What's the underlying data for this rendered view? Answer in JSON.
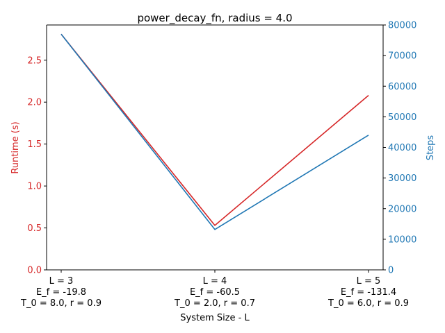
{
  "chart_data": {
    "type": "line",
    "title": "power_decay_fn, radius = 4.0",
    "xlabel": "System Size - L",
    "ylabel_left": "Runtime (s)",
    "ylabel_right": "Steps",
    "categories": [
      [
        "L = 3",
        "E_f = -19.8",
        "T_0 = 8.0, r = 0.9"
      ],
      [
        "L = 4",
        "E_f = -60.5",
        "T_0 = 2.0, r = 0.7"
      ],
      [
        "L = 5",
        "E_f = -131.4",
        "T_0 = 6.0, r = 0.9"
      ]
    ],
    "left_axis": {
      "ylim": [
        0,
        2.92
      ],
      "ticks": [
        0.0,
        0.5,
        1.0,
        1.5,
        2.0,
        2.5
      ],
      "tick_labels": [
        "0.0",
        "0.5",
        "1.0",
        "1.5",
        "2.0",
        "2.5"
      ],
      "color": "#d62728"
    },
    "right_axis": {
      "ylim": [
        0,
        80000
      ],
      "ticks": [
        0,
        10000,
        20000,
        30000,
        40000,
        50000,
        60000,
        70000,
        80000
      ],
      "tick_labels": [
        "0",
        "10000",
        "20000",
        "30000",
        "40000",
        "50000",
        "60000",
        "70000",
        "80000"
      ],
      "color": "#1f77b4"
    },
    "series": [
      {
        "axis": "left",
        "values": [
          2.81,
          0.53,
          2.08
        ],
        "color": "#d62728"
      },
      {
        "axis": "right",
        "values": [
          77000,
          13200,
          44000
        ],
        "color": "#1f77b4"
      }
    ]
  }
}
